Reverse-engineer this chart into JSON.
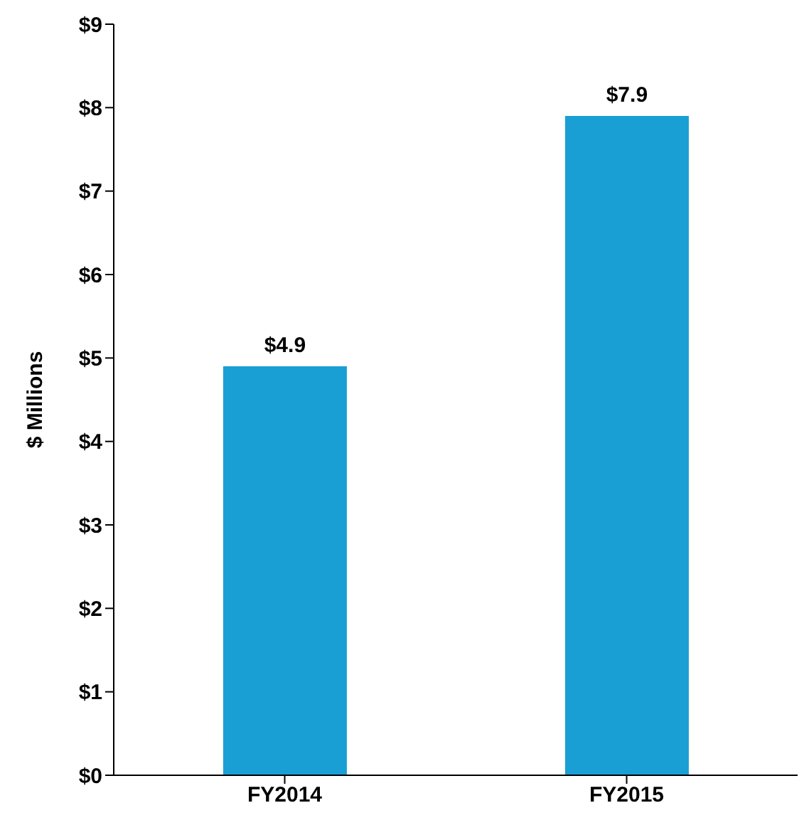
{
  "chart_data": {
    "type": "bar",
    "ylabel": "$ Millions",
    "categories": [
      "FY2014",
      "FY2015"
    ],
    "values": [
      4.9,
      7.9
    ],
    "color": "#1a9fd4",
    "value_labels": [
      "$4.9",
      "$7.9"
    ],
    "ylim": [
      0,
      9
    ],
    "yticks": [
      {
        "value": 0,
        "label": "$0"
      },
      {
        "value": 1,
        "label": "$1"
      },
      {
        "value": 2,
        "label": "$2"
      },
      {
        "value": 3,
        "label": "$3"
      },
      {
        "value": 4,
        "label": "$4"
      },
      {
        "value": 5,
        "label": "$5"
      },
      {
        "value": 6,
        "label": "$6"
      },
      {
        "value": 7,
        "label": "$7"
      },
      {
        "value": 8,
        "label": "$8"
      },
      {
        "value": 9,
        "label": "$9"
      }
    ],
    "grid": false,
    "legend": false
  }
}
